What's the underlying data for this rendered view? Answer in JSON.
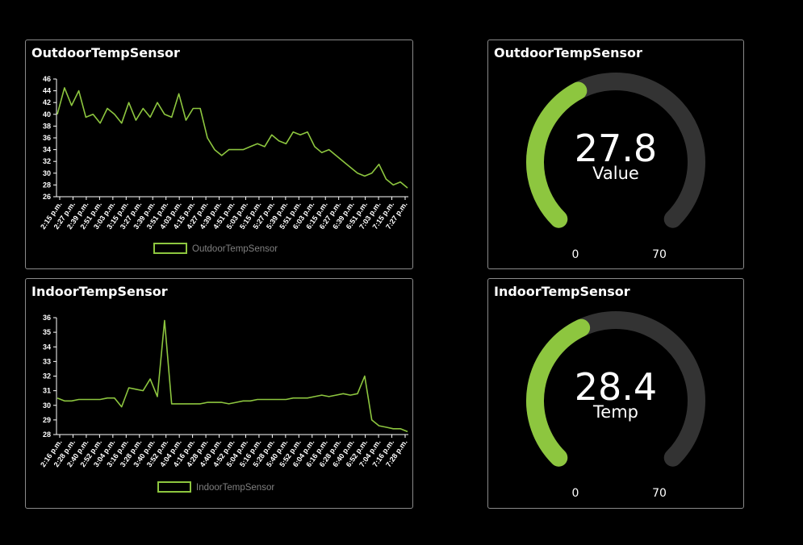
{
  "outdoor_chart": {
    "title": "OutdoorTempSensor",
    "legend": "OutdoorTempSensor",
    "color": "#8dc63f"
  },
  "indoor_chart": {
    "title": "IndoorTempSensor",
    "legend": "IndoorTempSensor",
    "color": "#8dc63f"
  },
  "outdoor_gauge": {
    "title": "OutdoorTempSensor",
    "value": "27.8",
    "label": "Value",
    "min": "0",
    "max": "70",
    "fill_fraction": 0.397,
    "fill_color": "#8dc63f",
    "track_color": "#333333"
  },
  "indoor_gauge": {
    "title": "IndoorTempSensor",
    "value": "28.4",
    "label": "Temp",
    "min": "0",
    "max": "70",
    "fill_fraction": 0.406,
    "fill_color": "#8dc63f",
    "track_color": "#333333"
  },
  "chart_data": [
    {
      "type": "line",
      "title": "OutdoorTempSensor",
      "legend_position": "bottom",
      "grid": false,
      "ylim": [
        26,
        46
      ],
      "yticks": [
        "46",
        "44",
        "42",
        "40",
        "38",
        "36",
        "34",
        "32",
        "30",
        "28",
        "26"
      ],
      "xticks": [
        "2:15 p.m.",
        "2:27 p.m.",
        "2:39 p.m.",
        "2:51 p.m.",
        "3:03 p.m.",
        "3:15 p.m.",
        "3:27 p.m.",
        "3:39 p.m.",
        "3:51 p.m.",
        "4:03 p.m.",
        "4:15 p.m.",
        "4:27 p.m.",
        "4:39 p.m.",
        "4:51 p.m.",
        "5:03 p.m.",
        "5:15 p.m.",
        "5:27 p.m.",
        "5:39 p.m.",
        "5:51 p.m.",
        "6:03 p.m.",
        "6:15 p.m.",
        "6:27 p.m.",
        "6:39 p.m.",
        "6:51 p.m.",
        "7:03 p.m.",
        "7:15 p.m.",
        "7:27 p.m."
      ],
      "series": [
        {
          "name": "OutdoorTempSensor",
          "values": [
            40,
            44.5,
            41.5,
            44,
            39.5,
            40,
            38.5,
            41,
            40,
            38.5,
            42,
            39,
            41,
            39.5,
            42,
            40,
            39.5,
            43.5,
            39,
            41,
            41,
            36,
            34,
            33,
            34,
            34,
            34,
            34.5,
            35,
            34.5,
            36.5,
            35.5,
            35,
            37,
            36.5,
            37,
            34.5,
            33.5,
            34,
            33,
            32,
            31,
            30,
            29.5,
            30,
            31.5,
            29,
            28,
            28.5,
            27.5
          ]
        }
      ]
    },
    {
      "type": "line",
      "title": "IndoorTempSensor",
      "legend_position": "bottom",
      "grid": false,
      "ylim": [
        28,
        36
      ],
      "yticks": [
        "36",
        "35",
        "34",
        "33",
        "32",
        "31",
        "30",
        "29",
        "28"
      ],
      "xticks": [
        "2:16 p.m.",
        "2:28 p.m.",
        "2:40 p.m.",
        "2:52 p.m.",
        "3:04 p.m.",
        "3:16 p.m.",
        "3:28 p.m.",
        "3:40 p.m.",
        "3:52 p.m.",
        "4:04 p.m.",
        "4:16 p.m.",
        "4:28 p.m.",
        "4:40 p.m.",
        "4:52 p.m.",
        "5:04 p.m.",
        "5:16 p.m.",
        "5:28 p.m.",
        "5:40 p.m.",
        "5:52 p.m.",
        "6:04 p.m.",
        "6:16 p.m.",
        "6:28 p.m.",
        "6:40 p.m.",
        "6:52 p.m.",
        "7:04 p.m.",
        "7:16 p.m.",
        "7:28 p.m."
      ],
      "series": [
        {
          "name": "IndoorTempSensor",
          "values": [
            30.5,
            30.3,
            30.3,
            30.4,
            30.4,
            30.4,
            30.4,
            30.5,
            30.5,
            29.9,
            31.2,
            31.1,
            31,
            31.8,
            30.6,
            35.8,
            30.1,
            30.1,
            30.1,
            30.1,
            30.1,
            30.2,
            30.2,
            30.2,
            30.1,
            30.2,
            30.3,
            30.3,
            30.4,
            30.4,
            30.4,
            30.4,
            30.4,
            30.5,
            30.5,
            30.5,
            30.6,
            30.7,
            30.6,
            30.7,
            30.8,
            30.7,
            30.8,
            32,
            29,
            28.6,
            28.5,
            28.4,
            28.4,
            28.2
          ]
        }
      ]
    }
  ]
}
